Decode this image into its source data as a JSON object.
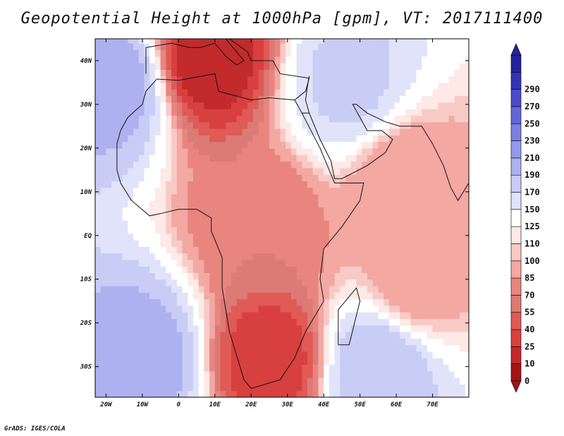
{
  "title": "Geopotential Height at 1000hPa [gpm], VT: 2017111400",
  "credit": "GrADS: IGES/COLA",
  "chart_data": {
    "type": "heatmap",
    "variable": "Geopotential Height at 1000hPa",
    "units": "gpm",
    "valid_time": "2017111400",
    "xlim": [
      -23,
      80
    ],
    "ylim": [
      -37,
      45
    ],
    "x_ticks": [
      {
        "value": -20,
        "label": "20W"
      },
      {
        "value": -10,
        "label": "10W"
      },
      {
        "value": 0,
        "label": "0"
      },
      {
        "value": 10,
        "label": "10E"
      },
      {
        "value": 20,
        "label": "20E"
      },
      {
        "value": 30,
        "label": "30E"
      },
      {
        "value": 40,
        "label": "40E"
      },
      {
        "value": 50,
        "label": "50E"
      },
      {
        "value": 60,
        "label": "60E"
      },
      {
        "value": 70,
        "label": "70E"
      }
    ],
    "y_ticks": [
      {
        "value": 40,
        "label": "40N"
      },
      {
        "value": 30,
        "label": "30N"
      },
      {
        "value": 20,
        "label": "20N"
      },
      {
        "value": 10,
        "label": "10N"
      },
      {
        "value": 0,
        "label": "EQ"
      },
      {
        "value": -10,
        "label": "10S"
      },
      {
        "value": -20,
        "label": "20S"
      },
      {
        "value": -30,
        "label": "30S"
      }
    ],
    "colorbar": {
      "levels": [
        0,
        10,
        25,
        40,
        55,
        70,
        85,
        100,
        110,
        125,
        150,
        170,
        190,
        210,
        230,
        250,
        270,
        290
      ],
      "colors": [
        "#a01618",
        "#c22a2c",
        "#d8403f",
        "#e05a56",
        "#dc7a75",
        "#e9857f",
        "#f3a8a2",
        "#f8cac6",
        "#fde9e6",
        "#ffffff",
        "#e1e3fa",
        "#c9ccf5",
        "#aeb1ef",
        "#9599ea",
        "#7c80e2",
        "#6366d8",
        "#4a4cc8",
        "#3334b4",
        "#23239c"
      ],
      "low_end": "#a01618",
      "high_end": "#23239c"
    },
    "field_features": [
      {
        "name": "mediterranean-low",
        "lon": 8,
        "lat": 41,
        "value": 15
      },
      {
        "name": "southern-africa-low",
        "lon": 25,
        "lat": -28,
        "value": 30
      },
      {
        "name": "central-africa",
        "lon": 22,
        "lat": 2,
        "value": 70
      },
      {
        "name": "arabian-sea",
        "lon": 62,
        "lat": 12,
        "value": 85
      },
      {
        "name": "indian-ocean",
        "lon": 65,
        "lat": -10,
        "value": 90
      },
      {
        "name": "south-atlantic-high",
        "lon": -10,
        "lat": -28,
        "value": 200
      },
      {
        "name": "south-indian-ocean-high",
        "lon": 55,
        "lat": -30,
        "value": 190
      },
      {
        "name": "east-atlantic-high",
        "lon": -18,
        "lat": 35,
        "value": 200
      },
      {
        "name": "middle-east-high",
        "lon": 47,
        "lat": 35,
        "value": 175
      }
    ]
  }
}
